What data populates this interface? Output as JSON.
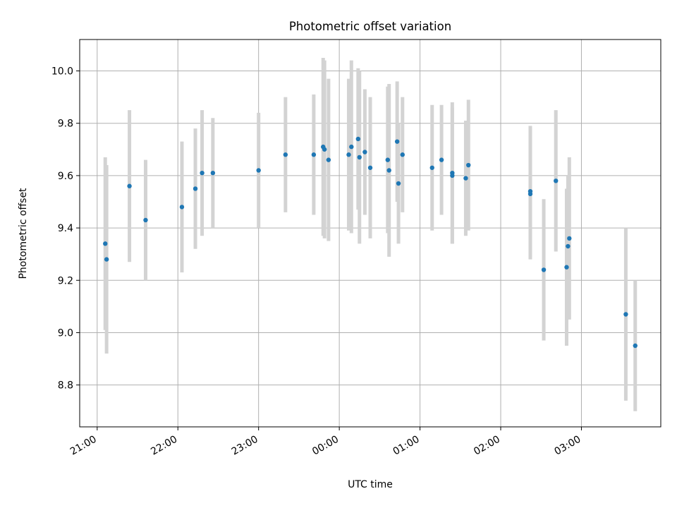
{
  "chart_data": {
    "type": "scatter",
    "title": "Photometric offset variation",
    "xlabel": "UTC time",
    "ylabel": "Photometric offset",
    "x_axis": {
      "kind": "time",
      "range": [
        "20:47",
        "03:59"
      ],
      "ticks": [
        "21:00",
        "22:00",
        "23:00",
        "00:00",
        "01:00",
        "02:00",
        "03:00"
      ],
      "tick_rotation": "30 degrees"
    },
    "ylim": [
      8.64,
      10.12
    ],
    "yticks": [
      "8.8",
      "9.0",
      "9.2",
      "9.4",
      "9.6",
      "9.8",
      "10.0"
    ],
    "grid": true,
    "colors": {
      "points": "#1f77b4",
      "error_bars": "#d3d3d3",
      "grid": "#b0b0b0"
    },
    "points": [
      {
        "x": "21:06",
        "y": 9.34,
        "err": 0.33
      },
      {
        "x": "21:07",
        "y": 9.28,
        "err": 0.36
      },
      {
        "x": "21:24",
        "y": 9.56,
        "err": 0.29
      },
      {
        "x": "21:36",
        "y": 9.43,
        "err": 0.23
      },
      {
        "x": "22:03",
        "y": 9.48,
        "err": 0.25
      },
      {
        "x": "22:13",
        "y": 9.55,
        "err": 0.23
      },
      {
        "x": "22:18",
        "y": 9.61,
        "err": 0.24
      },
      {
        "x": "22:26",
        "y": 9.61,
        "err": 0.21
      },
      {
        "x": "23:00",
        "y": 9.62,
        "err": 0.22
      },
      {
        "x": "23:20",
        "y": 9.68,
        "err": 0.22
      },
      {
        "x": "23:41",
        "y": 9.68,
        "err": 0.23
      },
      {
        "x": "23:48",
        "y": 9.71,
        "err": 0.34
      },
      {
        "x": "23:49",
        "y": 9.7,
        "err": 0.34
      },
      {
        "x": "23:52",
        "y": 9.66,
        "err": 0.31
      },
      {
        "x": "00:07",
        "y": 9.68,
        "err": 0.29
      },
      {
        "x": "00:09",
        "y": 9.71,
        "err": 0.33
      },
      {
        "x": "00:14",
        "y": 9.74,
        "err": 0.27
      },
      {
        "x": "00:15",
        "y": 9.67,
        "err": 0.33
      },
      {
        "x": "00:19",
        "y": 9.69,
        "err": 0.24
      },
      {
        "x": "00:23",
        "y": 9.63,
        "err": 0.27
      },
      {
        "x": "00:36",
        "y": 9.66,
        "err": 0.28
      },
      {
        "x": "00:37",
        "y": 9.62,
        "err": 0.33
      },
      {
        "x": "00:43",
        "y": 9.73,
        "err": 0.23
      },
      {
        "x": "00:44",
        "y": 9.57,
        "err": 0.23
      },
      {
        "x": "00:47",
        "y": 9.68,
        "err": 0.22
      },
      {
        "x": "01:09",
        "y": 9.63,
        "err": 0.24
      },
      {
        "x": "01:16",
        "y": 9.66,
        "err": 0.21
      },
      {
        "x": "01:24",
        "y": 9.61,
        "err": 0.27
      },
      {
        "x": "01:24",
        "y": 9.6,
        "err": 0.26
      },
      {
        "x": "01:34",
        "y": 9.59,
        "err": 0.22
      },
      {
        "x": "01:36",
        "y": 9.64,
        "err": 0.25
      },
      {
        "x": "02:22",
        "y": 9.53,
        "err": 0.25
      },
      {
        "x": "02:22",
        "y": 9.54,
        "err": 0.25
      },
      {
        "x": "02:32",
        "y": 9.24,
        "err": 0.27
      },
      {
        "x": "02:41",
        "y": 9.58,
        "err": 0.27
      },
      {
        "x": "02:49",
        "y": 9.25,
        "err": 0.3
      },
      {
        "x": "02:50",
        "y": 9.33,
        "err": 0.27
      },
      {
        "x": "02:51",
        "y": 9.36,
        "err": 0.31
      },
      {
        "x": "03:33",
        "y": 9.07,
        "err": 0.33
      },
      {
        "x": "03:40",
        "y": 8.95,
        "err": 0.25
      }
    ]
  }
}
